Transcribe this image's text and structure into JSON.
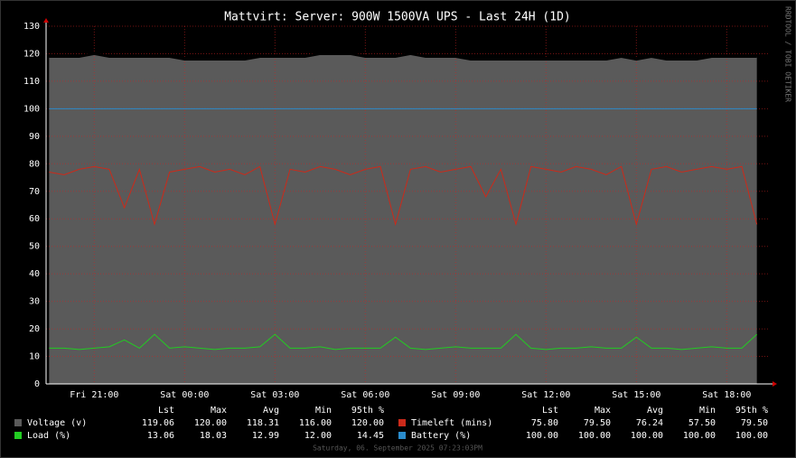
{
  "chart_data": {
    "type": "line",
    "title": "Mattvirt: Server: 900W 1500VA UPS - Last 24H (1D)",
    "side_label": "RRDTOOL / TOBI OETIKER",
    "timestamp": "Saturday, 06. September 2025 07:23:03PM",
    "x": [
      19.5,
      20,
      20.5,
      21,
      21.5,
      22,
      22.5,
      23,
      23.5,
      24,
      24.5,
      25,
      25.5,
      26,
      26.5,
      27,
      27.5,
      28,
      28.5,
      29,
      29.5,
      30,
      30.5,
      31,
      31.5,
      32,
      32.5,
      33,
      33.5,
      34,
      34.5,
      35,
      35.5,
      36,
      36.5,
      37,
      37.5,
      38,
      38.5,
      39,
      39.5,
      40,
      40.5,
      41,
      41.5,
      42,
      42.5,
      43
    ],
    "xlim": [
      19.4,
      43.4
    ],
    "xticks": [
      {
        "value": 21,
        "label": "Fri 21:00"
      },
      {
        "value": 24,
        "label": "Sat 00:00"
      },
      {
        "value": 27,
        "label": "Sat 03:00"
      },
      {
        "value": 30,
        "label": "Sat 06:00"
      },
      {
        "value": 33,
        "label": "Sat 09:00"
      },
      {
        "value": 36,
        "label": "Sat 12:00"
      },
      {
        "value": 39,
        "label": "Sat 15:00"
      },
      {
        "value": 42,
        "label": "Sat 18:00"
      }
    ],
    "ylim": [
      0,
      130
    ],
    "yticks": [
      0,
      10,
      20,
      30,
      40,
      50,
      60,
      70,
      80,
      90,
      100,
      110,
      120,
      130
    ],
    "grid": true,
    "stat_headers": [
      "Lst",
      "Max",
      "Avg",
      "Min",
      "95th %"
    ],
    "series": [
      {
        "name": "Voltage (v)",
        "color": "#5a5a5a",
        "line_color": "#000000",
        "kind": "area",
        "stats": [
          "119.06",
          "120.00",
          "118.31",
          "116.00",
          "120.00"
        ],
        "values": [
          119,
          119,
          119,
          120,
          119,
          119,
          119,
          119,
          119,
          118,
          118,
          118,
          118,
          118,
          119,
          119,
          119,
          119,
          120,
          120,
          120,
          119,
          119,
          119,
          120,
          119,
          119,
          119,
          118,
          118,
          118,
          118,
          118,
          118,
          118,
          118,
          118,
          118,
          119,
          118,
          119,
          118,
          118,
          118,
          119,
          119,
          119,
          119
        ]
      },
      {
        "name": "Load (%)",
        "color": "#22cc22",
        "kind": "line",
        "stats": [
          "13.06",
          "18.03",
          "12.99",
          "12.00",
          "14.45"
        ],
        "values": [
          13,
          13,
          12.5,
          13,
          13.5,
          16,
          13,
          18,
          13,
          13.5,
          13,
          12.5,
          13,
          13,
          13.5,
          18,
          13,
          13,
          13.5,
          12.5,
          13,
          13,
          13,
          17,
          13,
          12.5,
          13,
          13.5,
          13,
          13,
          13,
          18,
          13,
          12.5,
          13,
          13,
          13.5,
          13,
          13,
          17,
          13,
          13,
          12.5,
          13,
          13.5,
          13,
          13,
          18
        ]
      },
      {
        "name": "Timeleft (mins)",
        "color": "#cc2a1a",
        "kind": "line",
        "stats": [
          "75.80",
          "79.50",
          "76.24",
          "57.50",
          "79.50"
        ],
        "values": [
          77,
          76,
          78,
          79,
          78,
          64,
          78,
          58,
          77,
          78,
          79,
          77,
          78,
          76,
          79,
          58,
          78,
          77,
          79,
          78,
          76,
          78,
          79,
          58,
          78,
          79,
          77,
          78,
          79,
          68,
          78,
          58,
          79,
          78,
          77,
          79,
          78,
          76,
          79,
          58,
          78,
          79,
          77,
          78,
          79,
          78,
          79,
          58
        ]
      },
      {
        "name": "Battery (%)",
        "color": "#2a8ccc",
        "kind": "line",
        "stats": [
          "100.00",
          "100.00",
          "100.00",
          "100.00",
          "100.00"
        ],
        "values": [
          100,
          100,
          100,
          100,
          100,
          100,
          100,
          100,
          100,
          100,
          100,
          100,
          100,
          100,
          100,
          100,
          100,
          100,
          100,
          100,
          100,
          100,
          100,
          100,
          100,
          100,
          100,
          100,
          100,
          100,
          100,
          100,
          100,
          100,
          100,
          100,
          100,
          100,
          100,
          100,
          100,
          100,
          100,
          100,
          100,
          100,
          100,
          100
        ]
      }
    ]
  }
}
